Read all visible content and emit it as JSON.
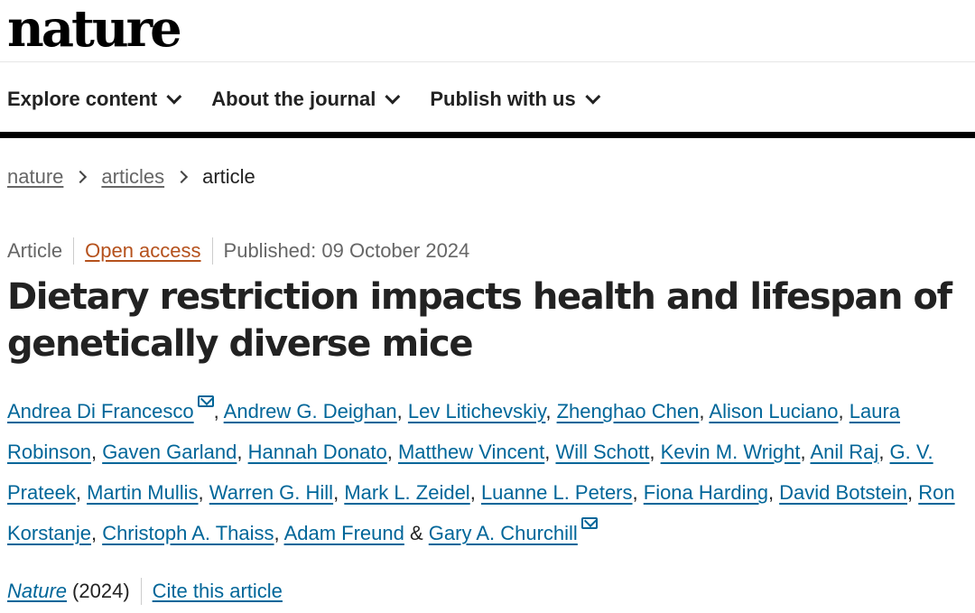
{
  "header": {
    "logo_text": "nature"
  },
  "nav": {
    "items": [
      {
        "label": "Explore content",
        "icon": "chevron-down-icon"
      },
      {
        "label": "About the journal",
        "icon": "chevron-down-icon"
      },
      {
        "label": "Publish with us",
        "icon": "chevron-down-icon"
      }
    ]
  },
  "breadcrumb": {
    "items": [
      "nature",
      "articles"
    ],
    "current": "article"
  },
  "meta": {
    "type": "Article",
    "access": "Open access",
    "published": "Published: 09 October 2024"
  },
  "article": {
    "title": "Dietary restriction impacts health and lifespan of genetically diverse mice"
  },
  "authors": [
    "Andrea Di Francesco",
    "Andrew G. Deighan",
    "Lev Litichevskiy",
    "Zhenghao Chen",
    "Alison Luciano",
    "Laura Robinson",
    "Gaven Garland",
    "Hannah Donato",
    "Matthew Vincent",
    "Will Schott",
    "Kevin M. Wright",
    "Anil Raj",
    "G. V. Prateek",
    "Martin Mullis",
    "Warren G. Hill",
    "Mark L. Zeidel",
    "Luanne L. Peters",
    "Fiona Harding",
    "David Botstein",
    "Ron Korstanje",
    "Christoph A. Thaiss",
    "Adam Freund",
    "Gary A. Churchill"
  ],
  "author_join": "&",
  "citation": {
    "journal": "Nature",
    "year": "(2024)",
    "cite_label": "Cite this article"
  },
  "colors": {
    "link": "#006699",
    "open_access": "#b5511c",
    "text": "#222222",
    "muted": "#666666"
  }
}
